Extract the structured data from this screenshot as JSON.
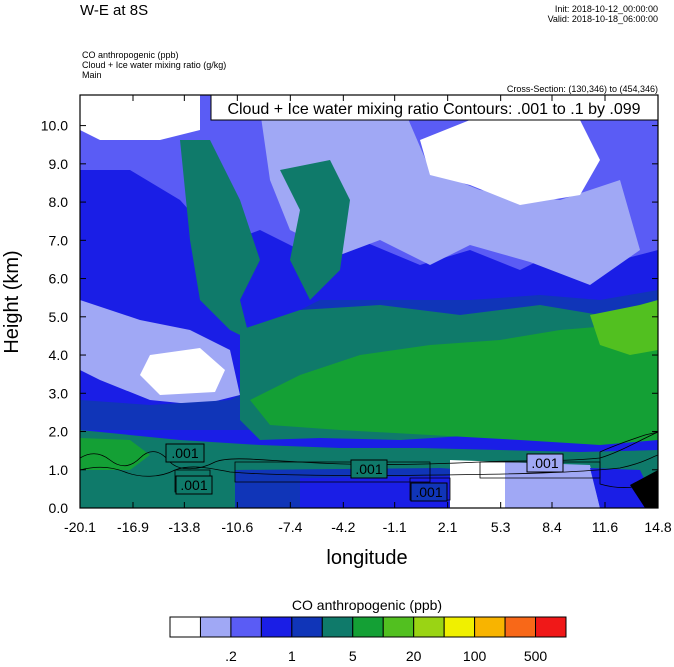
{
  "header": {
    "title": "W-E at 8S",
    "init": "Init: 2018-10-12_00:00:00",
    "valid": "Valid: 2018-10-18_06:00:00",
    "var1": "CO anthropogenic   (ppb)",
    "var2": "Cloud + Ice water mixing ratio   (g/kg)",
    "var3": "Main",
    "cross_section": "Cross-Section: (130,346) to (454,346)"
  },
  "chart_data": {
    "type": "heatmap",
    "contour_label": "Cloud + Ice water mixing ratio Contours: .001 to .1 by .099",
    "xlabel": "longitude",
    "ylabel": "Height (km)",
    "x_ticks": [
      "-20.1",
      "-16.9",
      "-13.8",
      "-10.6",
      "-7.4",
      "-4.2",
      "-1.1",
      "2.1",
      "5.3",
      "8.4",
      "11.6",
      "14.8"
    ],
    "y_ticks": [
      "0.0",
      "1.0",
      "2.0",
      "3.0",
      "4.0",
      "5.0",
      "6.0",
      "7.0",
      "8.0",
      "9.0",
      "10.0"
    ],
    "xlim": [
      -20.1,
      14.8
    ],
    "ylim": [
      0,
      10.8
    ],
    "contour_levels_labeled": [
      ".001",
      ".001",
      ".001",
      ".001",
      ".001"
    ],
    "colorbar": {
      "title": "CO anthropogenic  (ppb)",
      "colors": [
        "#ffffff",
        "#a0a8f5",
        "#5a5cf5",
        "#1a1ee6",
        "#1035b8",
        "#0f7a6a",
        "#14a035",
        "#52c020",
        "#9ad414",
        "#f0f000",
        "#f8b400",
        "#f86818",
        "#f01818"
      ],
      "labels": [
        ".2",
        "1",
        "5",
        "20",
        "100",
        "500"
      ]
    }
  }
}
